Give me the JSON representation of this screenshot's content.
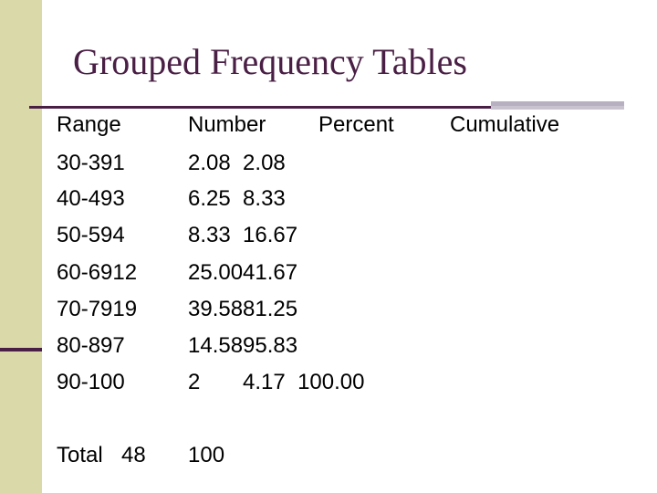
{
  "title": "Grouped Frequency Tables",
  "header": {
    "range": "Range",
    "number": "Number",
    "percent": "Percent",
    "cumulative": "Cumulative"
  },
  "rows": [
    {
      "range": "30-391",
      "values": "2.08  2.08"
    },
    {
      "range": "40-493",
      "values": "6.25  8.33"
    },
    {
      "range": "50-594",
      "values": "8.33  16.67"
    },
    {
      "range": "60-6912",
      "values": "25.0041.67"
    },
    {
      "range": "70-7919",
      "values": "39.5881.25"
    },
    {
      "range": "80-897",
      "values": "14.5895.83"
    },
    {
      "range": "90-100",
      "values": "2       4.17  100.00"
    }
  ],
  "total": {
    "label": "Total",
    "count": "48",
    "percent": "100"
  },
  "colors": {
    "accent": "#4a1f45",
    "band": "#d9d9a9",
    "rule_gray": "#b7b0c0"
  }
}
